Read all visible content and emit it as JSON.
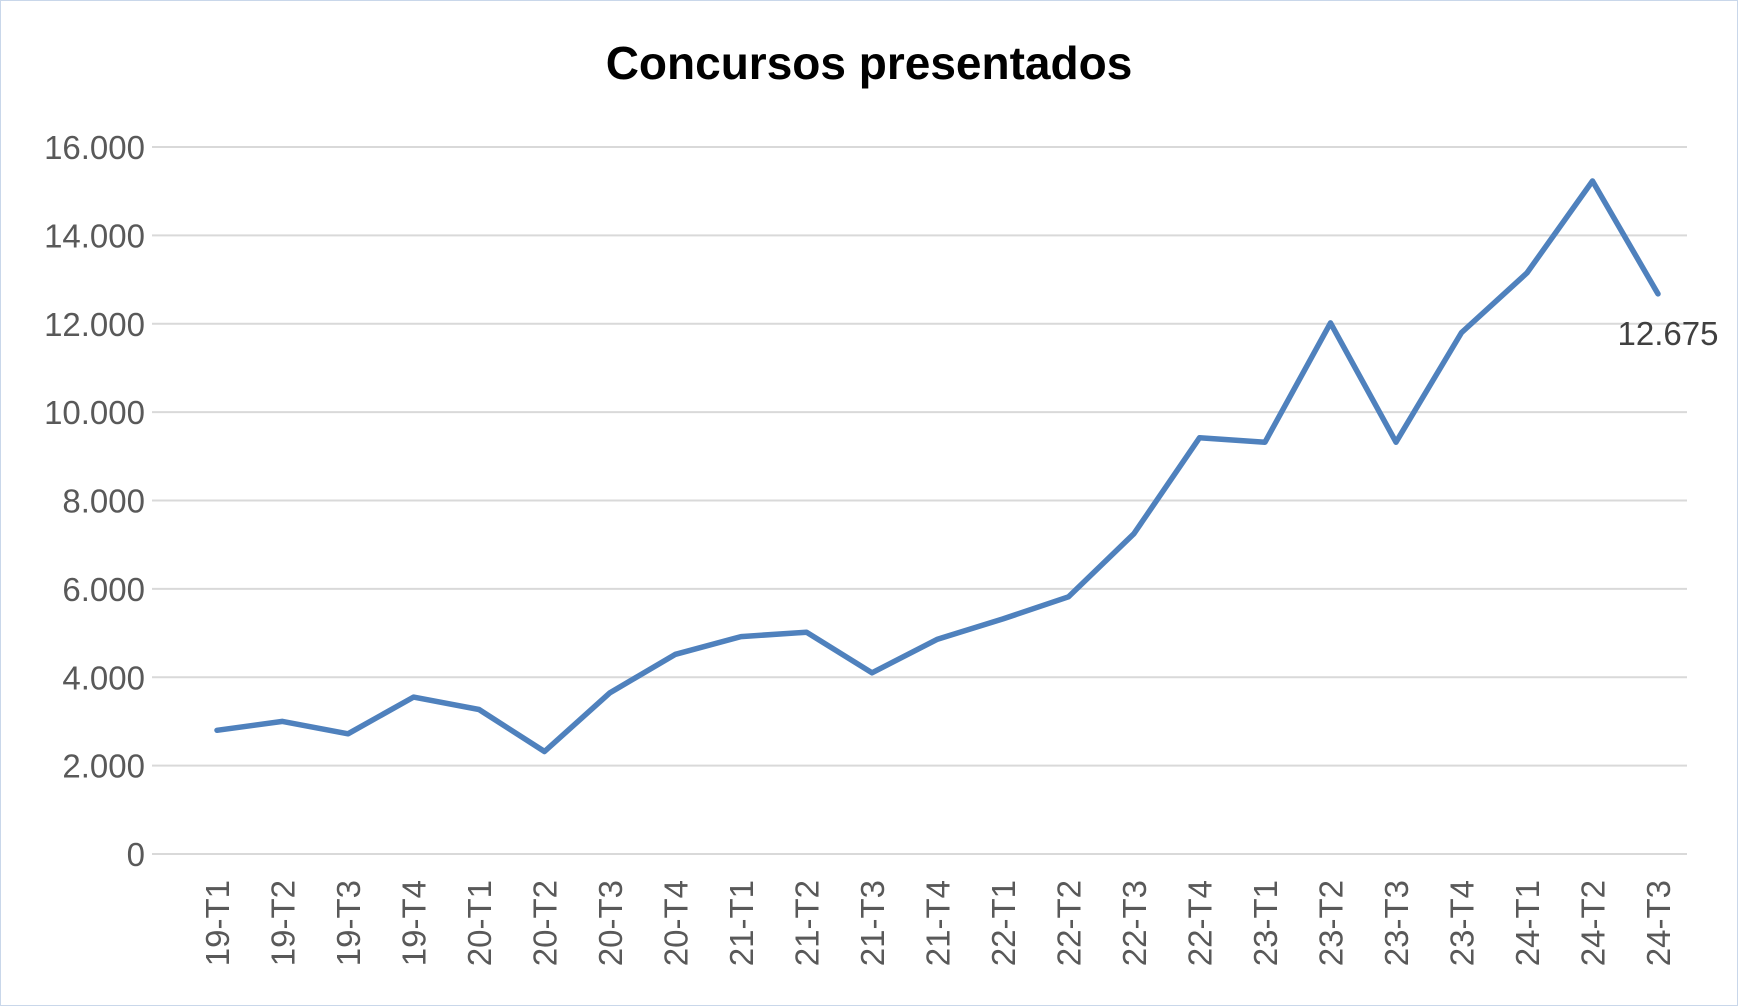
{
  "chart_data": {
    "type": "line",
    "title": "Concursos presentados",
    "xlabel": "",
    "ylabel": "",
    "categories": [
      "19-T1",
      "19-T2",
      "19-T3",
      "19-T4",
      "20-T1",
      "20-T2",
      "20-T3",
      "20-T4",
      "21-T1",
      "21-T2",
      "21-T3",
      "21-T4",
      "22-T1",
      "22-T2",
      "22-T3",
      "22-T4",
      "23-T1",
      "23-T2",
      "23-T3",
      "23-T4",
      "24-T1",
      "24-T2",
      "24-T3"
    ],
    "series": [
      {
        "values": [
          2800,
          3000,
          2720,
          3550,
          3270,
          2320,
          3650,
          4520,
          4920,
          5020,
          4100,
          4860,
          5320,
          5820,
          7250,
          9420,
          9320,
          12020,
          9320,
          11800,
          13150,
          15230,
          12675
        ]
      }
    ],
    "data_labels": [
      {
        "index": 22,
        "text": "12.675"
      }
    ],
    "ylim": [
      0,
      16000
    ],
    "yticks": [
      0,
      2000,
      4000,
      6000,
      8000,
      10000,
      12000,
      14000,
      16000
    ],
    "ytick_labels": [
      "0",
      "2.000",
      "4.000",
      "6.000",
      "8.000",
      "10.000",
      "12.000",
      "14.000",
      "16.000"
    ],
    "grid": true,
    "legend": "none",
    "line_color": "#4f81bd",
    "grid_color": "#d9d9d9"
  }
}
